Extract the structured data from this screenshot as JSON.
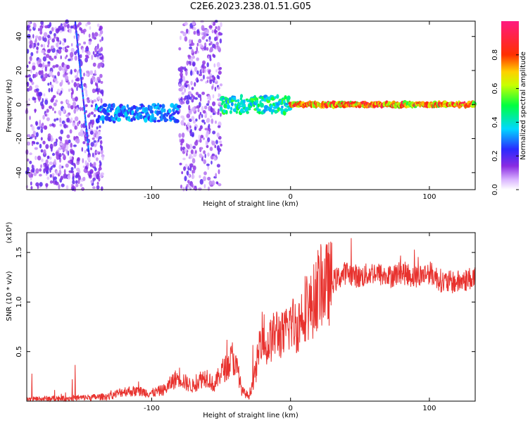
{
  "title": "C2E6.2023.238.01.51.G05",
  "colors": {
    "snr_line": "#e8322e",
    "spectrogram_base": "#8a2be2"
  },
  "chart_data": [
    {
      "type": "heatmap",
      "xlabel": "Height of straight line (km)",
      "ylabel": "Frequency (Hz)",
      "xlim": [
        -190,
        133
      ],
      "ylim": [
        -50,
        49
      ],
      "xticks": [
        -100,
        0,
        100
      ],
      "xtick_labels": [
        "-100",
        "0",
        "100"
      ],
      "yticks": [
        -40,
        -20,
        0,
        20,
        40
      ],
      "ytick_labels": [
        "-40",
        "-20",
        "0",
        "20",
        "40"
      ],
      "grid": false,
      "colorbar": {
        "label": "Normalized spectral amplitude",
        "range": [
          0,
          1
        ],
        "ticks": [
          0.0,
          0.2,
          0.4,
          0.6,
          0.8
        ],
        "tick_labels": [
          "0.0",
          "0.2",
          "0.4",
          "0.6",
          "0.8"
        ],
        "colormap": "rainbow (white-purple-blue-cyan-green-yellow-red-magenta)"
      },
      "features": [
        {
          "kind": "noise_band",
          "x_range": [
            -190,
            -135
          ],
          "level": 0.1
        },
        {
          "kind": "noise_band",
          "x_range": [
            -80,
            -50
          ],
          "level": 0.1
        },
        {
          "kind": "ridge",
          "x_range": [
            -140,
            -80
          ],
          "freq": -5,
          "level": 0.35
        },
        {
          "kind": "ridge",
          "x_range": [
            -50,
            0
          ],
          "freq": 0,
          "level": 0.5
        },
        {
          "kind": "ridge",
          "x_range": [
            0,
            133
          ],
          "freq": 0,
          "level": 0.85
        },
        {
          "kind": "streak",
          "x_range": [
            -155,
            -145
          ],
          "freq_range": [
            48,
            -30
          ],
          "level": 0.25
        }
      ]
    },
    {
      "type": "line",
      "xlabel": "Height of straight line (km)",
      "ylabel": "SNR (10 * v/v)",
      "yscale_label": "(x10⁴)",
      "xlim": [
        -190,
        133
      ],
      "ylim": [
        0,
        1.7
      ],
      "xticks": [
        -100,
        0,
        100
      ],
      "xtick_labels": [
        "-100",
        "0",
        "100"
      ],
      "yticks": [
        0.5,
        1.0,
        1.5
      ],
      "ytick_labels": [
        "0.5",
        "1.0",
        "1.5"
      ],
      "grid": false,
      "series": [
        {
          "x": [
            -190,
            -160,
            -140,
            -130,
            -120,
            -110,
            -100,
            -90,
            -85,
            -80,
            -75,
            -70,
            -65,
            -60,
            -55,
            -50,
            -45,
            -42,
            -38,
            -35,
            -30,
            -25,
            -20,
            -18,
            -15,
            -10,
            -5,
            0,
            5,
            10,
            15,
            20,
            30,
            40,
            50,
            60,
            70,
            80,
            90,
            100,
            110,
            120,
            133
          ],
          "y": [
            0.02,
            0.03,
            0.04,
            0.05,
            0.1,
            0.1,
            0.08,
            0.12,
            0.2,
            0.25,
            0.18,
            0.15,
            0.22,
            0.25,
            0.15,
            0.3,
            0.35,
            0.45,
            0.3,
            0.1,
            0.05,
            0.3,
            0.8,
            0.5,
            0.6,
            0.7,
            0.65,
            0.8,
            0.75,
            0.95,
            0.95,
            1.15,
            1.2,
            1.3,
            1.25,
            1.3,
            1.25,
            1.3,
            1.25,
            1.3,
            1.2,
            1.2,
            1.25
          ]
        }
      ]
    }
  ]
}
